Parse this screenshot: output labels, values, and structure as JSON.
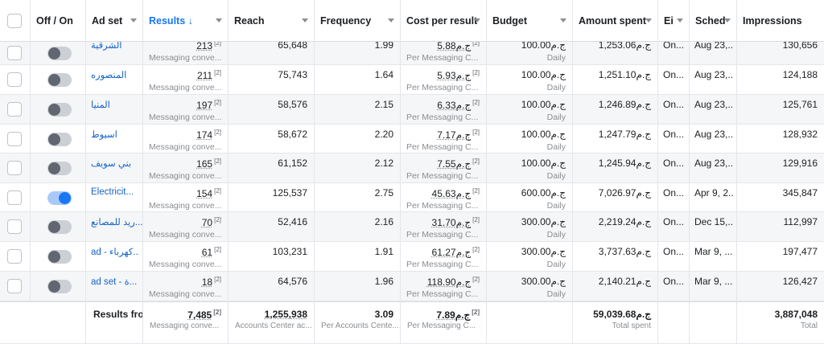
{
  "header": {
    "columns": [
      {
        "key": "select",
        "label": ""
      },
      {
        "key": "onoff",
        "label": "Off / On"
      },
      {
        "key": "adset",
        "label": "Ad set"
      },
      {
        "key": "results",
        "label": "Results ↓"
      },
      {
        "key": "reach",
        "label": "Reach"
      },
      {
        "key": "frequency",
        "label": "Frequency"
      },
      {
        "key": "cpr",
        "label": "Cost per result"
      },
      {
        "key": "budget",
        "label": "Budget"
      },
      {
        "key": "spent",
        "label": "Amount spent"
      },
      {
        "key": "ends",
        "label": "Ei"
      },
      {
        "key": "schedule",
        "label": "Sched"
      },
      {
        "key": "impressions",
        "label": "Impressions"
      }
    ]
  },
  "rows": [
    {
      "on": false,
      "adset": "الشرقية",
      "results": "213",
      "results_sup": "[2]",
      "results_sub": "Messaging conve...",
      "reach": "65,648",
      "frequency": "1.99",
      "cpr": "5.88ج.م",
      "cpr_sup": "[2]",
      "cpr_sub": "Per Messaging C...",
      "budget": "100.00ج.م",
      "budget_sub": "Daily",
      "spent": "1,253.06ج.م",
      "ends": "On...",
      "schedule": "Aug 23,...",
      "impressions": "130,656"
    },
    {
      "on": false,
      "adset": "المنصوره",
      "results": "211",
      "results_sup": "[2]",
      "results_sub": "Messaging conve...",
      "reach": "75,743",
      "frequency": "1.64",
      "cpr": "5.93ج.م",
      "cpr_sup": "[2]",
      "cpr_sub": "Per Messaging C...",
      "budget": "100.00ج.م",
      "budget_sub": "Daily",
      "spent": "1,251.10ج.م",
      "ends": "On...",
      "schedule": "Aug 23,...",
      "impressions": "124,188"
    },
    {
      "on": false,
      "adset": "المنيا",
      "results": "197",
      "results_sup": "[2]",
      "results_sub": "Messaging conve...",
      "reach": "58,576",
      "frequency": "2.15",
      "cpr": "6.33ج.م",
      "cpr_sup": "[2]",
      "cpr_sub": "Per Messaging C...",
      "budget": "100.00ج.م",
      "budget_sub": "Daily",
      "spent": "1,246.89ج.م",
      "ends": "On...",
      "schedule": "Aug 23,...",
      "impressions": "125,761"
    },
    {
      "on": false,
      "adset": "اسيوط",
      "results": "174",
      "results_sup": "[2]",
      "results_sub": "Messaging conve...",
      "reach": "58,672",
      "frequency": "2.20",
      "cpr": "7.17ج.م",
      "cpr_sup": "[2]",
      "cpr_sub": "Per Messaging C...",
      "budget": "100.00ج.م",
      "budget_sub": "Daily",
      "spent": "1,247.79ج.م",
      "ends": "On...",
      "schedule": "Aug 23,...",
      "impressions": "128,932"
    },
    {
      "on": false,
      "adset": "بني سويف",
      "results": "165",
      "results_sup": "[2]",
      "results_sub": "Messaging conve...",
      "reach": "61,152",
      "frequency": "2.12",
      "cpr": "7.55ج.م",
      "cpr_sup": "[2]",
      "cpr_sub": "Per Messaging C...",
      "budget": "100.00ج.م",
      "budget_sub": "Daily",
      "spent": "1,245.94ج.م",
      "ends": "On...",
      "schedule": "Aug 23,...",
      "impressions": "129,916"
    },
    {
      "on": true,
      "adset": "Electricit...",
      "results": "154",
      "results_sup": "[2]",
      "results_sub": "Messaging conve...",
      "reach": "125,537",
      "frequency": "2.75",
      "cpr": "45.63ج.م",
      "cpr_sup": "[2]",
      "cpr_sub": "Per Messaging C...",
      "budget": "600.00ج.م",
      "budget_sub": "Daily",
      "spent": "7,026.97ج.م",
      "ends": "On...",
      "schedule": "Apr 9, 2...",
      "impressions": "345,847"
    },
    {
      "on": false,
      "adset": "...ريد للمصانع",
      "results": "70",
      "results_sup": "[2]",
      "results_sub": "Messaging conve...",
      "reach": "52,416",
      "frequency": "2.16",
      "cpr": "31.70ج.م",
      "cpr_sup": "[2]",
      "cpr_sub": "Per Messaging C...",
      "budget": "300.00ج.م",
      "budget_sub": "Daily",
      "spent": "2,219.24ج.م",
      "ends": "On...",
      "schedule": "Dec 15,...",
      "impressions": "112,997"
    },
    {
      "on": false,
      "adset": "ad - كهرباء...",
      "results": "61",
      "results_sup": "[2]",
      "results_sub": "Messaging conve...",
      "reach": "103,231",
      "frequency": "1.91",
      "cpr": "61.27ج.م",
      "cpr_sup": "[2]",
      "cpr_sub": "Per Messaging C...",
      "budget": "300.00ج.م",
      "budget_sub": "Daily",
      "spent": "3,737.63ج.م",
      "ends": "On...",
      "schedule": "Mar 9, ...",
      "impressions": "197,477"
    },
    {
      "on": false,
      "adset": "ad set - ة...",
      "results": "18",
      "results_sup": "[2]",
      "results_sub": "Messaging conve...",
      "reach": "64,576",
      "frequency": "1.96",
      "cpr": "118.90ج.م",
      "cpr_sup": "[2]",
      "cpr_sub": "Per Messaging C...",
      "budget": "300.00ج.م",
      "budget_sub": "Daily",
      "spent": "2,140.21ج.م",
      "ends": "On...",
      "schedule": "Mar 9, ...",
      "impressions": "126,427"
    }
  ],
  "totals": {
    "label": "Results fro",
    "results": "7,485",
    "results_sup": "[2]",
    "results_sub": "Messaging conve...",
    "reach": "1,255,938",
    "reach_sub": "Accounts Center ac...",
    "frequency": "3.09",
    "frequency_sub": "Per Accounts Cente...",
    "cpr": "7.89ج.م",
    "cpr_sup": "[2]",
    "cpr_sub": "Per Messaging C...",
    "spent": "59,039.68ج.م",
    "spent_sub": "Total spent",
    "impressions": "3,887,048",
    "impressions_sub": "Total"
  },
  "colors": {
    "accent": "#1877f2",
    "link": "#1463c9",
    "muted": "#8a8d91"
  }
}
